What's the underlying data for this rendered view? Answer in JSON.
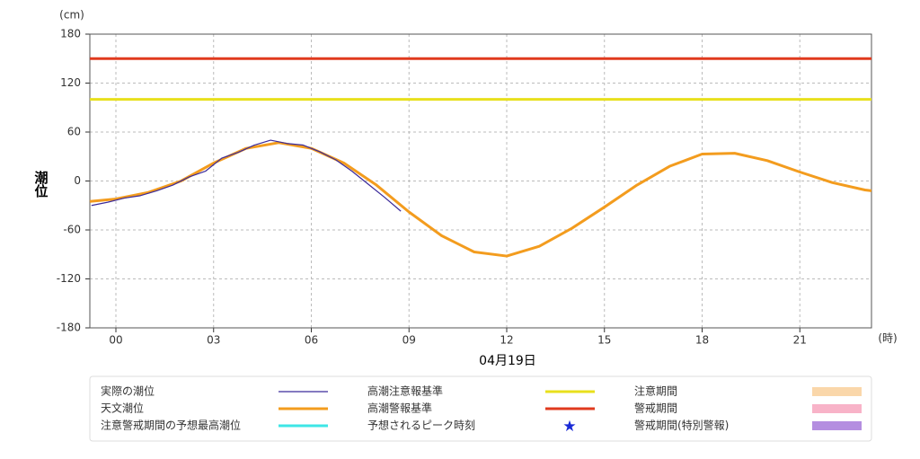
{
  "chart_data": {
    "type": "line",
    "y_label": "潮位",
    "y_unit": "(cm)",
    "x_unit": "(時)",
    "date_label": "04月19日",
    "xlim": [
      -0.8,
      23.2
    ],
    "ylim": [
      -180,
      180
    ],
    "xticks": [
      {
        "value": 0,
        "label": "00"
      },
      {
        "value": 3,
        "label": "03"
      },
      {
        "value": 6,
        "label": "06"
      },
      {
        "value": 9,
        "label": "09"
      },
      {
        "value": 12,
        "label": "12"
      },
      {
        "value": 15,
        "label": "15"
      },
      {
        "value": 18,
        "label": "18"
      },
      {
        "value": 21,
        "label": "21"
      }
    ],
    "yticks": [
      -180,
      -120,
      -60,
      0,
      60,
      120,
      180
    ],
    "grid": true,
    "series": [
      {
        "name": "実際の潮位",
        "color": "#3b2a9a",
        "width": 1.2,
        "x": [
          -0.75,
          -0.25,
          0.25,
          0.75,
          1.25,
          1.75,
          2.25,
          2.75,
          3.25,
          3.75,
          4.25,
          4.75,
          5.25,
          5.75,
          6.25,
          6.75,
          7.25,
          7.75,
          8.25,
          8.75
        ],
        "values": [
          -30,
          -26,
          -21,
          -18,
          -12,
          -5,
          5,
          12,
          28,
          35,
          44,
          50,
          46,
          44,
          36,
          26,
          12,
          -4,
          -20,
          -37
        ]
      },
      {
        "name": "天文潮位",
        "color": "#f39c1e",
        "width": 3,
        "x": [
          -0.8,
          0,
          1,
          2,
          3,
          4,
          5,
          6,
          7,
          8,
          9,
          10,
          11,
          12,
          13,
          14,
          15,
          16,
          17,
          18,
          19,
          20,
          21,
          22,
          23,
          23.2
        ],
        "values": [
          -25,
          -22,
          -14,
          0,
          22,
          40,
          47,
          40,
          22,
          -5,
          -38,
          -67,
          -87,
          -92,
          -80,
          -58,
          -32,
          -5,
          18,
          33,
          34,
          25,
          11,
          -2,
          -11,
          -12
        ]
      }
    ],
    "reference_lines": [
      {
        "name": "高潮注意報基準",
        "value": 100,
        "color": "#e8e01c"
      },
      {
        "name": "高潮警報基準",
        "value": 150,
        "color": "#e03a1e"
      }
    ],
    "legend_extra": [
      {
        "name": "注意警戒期間の予想最高潮位",
        "color": "#3ee6e6",
        "kind": "line"
      },
      {
        "name": "予想されるピーク時刻",
        "color": "#1a2ad6",
        "kind": "star"
      },
      {
        "name": "注意期間",
        "color": "#fad7aa",
        "kind": "swatch"
      },
      {
        "name": "警戒期間",
        "color": "#f8b3c8",
        "kind": "swatch"
      },
      {
        "name": "警戒期間(特別警報)",
        "color": "#b48ee0",
        "kind": "swatch"
      }
    ]
  }
}
